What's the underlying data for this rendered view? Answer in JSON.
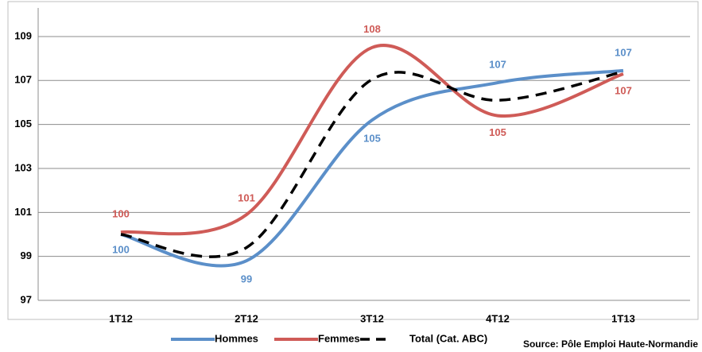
{
  "chart_data": {
    "type": "line",
    "categories": [
      "1T12",
      "2T12",
      "3T12",
      "4T12",
      "1T13"
    ],
    "series": [
      {
        "name": "Hommes",
        "color": "#5b8fc9",
        "values": [
          100,
          98.8,
          105.2,
          106.9,
          107.45
        ],
        "value_labels": [
          "100",
          "99",
          "105",
          "107",
          "107"
        ]
      },
      {
        "name": "Femmes",
        "color": "#cf5b57",
        "values": [
          100.1,
          100.9,
          108.5,
          105.4,
          107.3
        ],
        "value_labels": [
          "100",
          "101",
          "108",
          "105",
          "107"
        ]
      },
      {
        "name": "Total (Cat. ABC)",
        "color": "#000000",
        "dashed": true,
        "values": [
          100,
          99.4,
          107.05,
          106.1,
          107.4
        ]
      }
    ],
    "ylim": [
      97,
      110.3
    ],
    "yticks": [
      97,
      99,
      101,
      103,
      105,
      107,
      109
    ],
    "grid": true,
    "legend": "bottom",
    "source": "Source: Pôle Emploi Haute-Normandie"
  }
}
